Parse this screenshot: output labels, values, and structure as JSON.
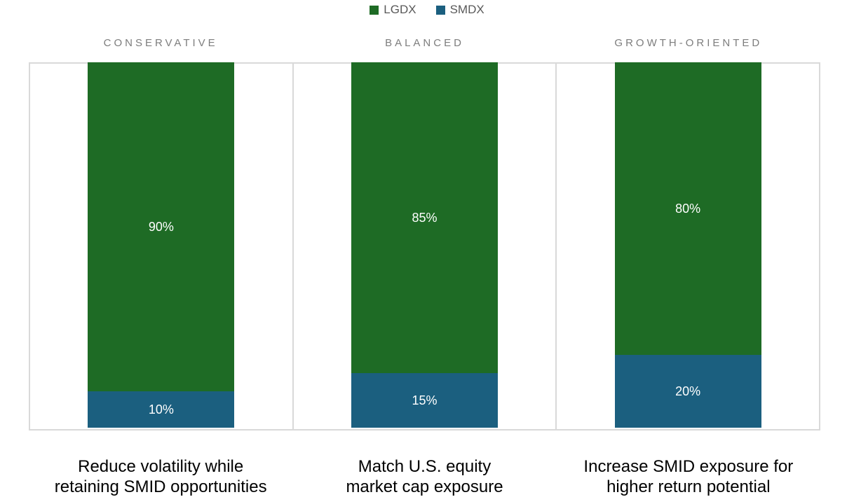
{
  "legend": {
    "items": [
      {
        "label": "LGDX",
        "color": "#1E6B25"
      },
      {
        "label": "SMDX",
        "color": "#1B5F7F"
      }
    ]
  },
  "chart_data": {
    "type": "bar",
    "stacked": true,
    "orientation": "vertical",
    "categories": [
      "CONSERVATIVE",
      "BALANCED",
      "GROWTH-ORIENTED"
    ],
    "series": [
      {
        "name": "LGDX",
        "color": "#1E6B25",
        "values": [
          90,
          85,
          80
        ]
      },
      {
        "name": "SMDX",
        "color": "#1B5F7F",
        "values": [
          10,
          15,
          20
        ]
      }
    ],
    "value_labels": [
      [
        "90%",
        "85%",
        "80%"
      ],
      [
        "10%",
        "15%",
        "20%"
      ]
    ],
    "unit": "%",
    "ylim": [
      0,
      100
    ],
    "grid": false,
    "legend_position": "top-center",
    "captions": [
      "Reduce volatility while retaining SMID opportunities",
      "Match U.S. equity market cap exposure",
      "Increase SMID exposure for higher return potential"
    ]
  },
  "panels": [
    {
      "header": "CONSERVATIVE",
      "lgdx_label": "90%",
      "smdx_label": "10%",
      "caption_line1": "Reduce volatility while",
      "caption_line2": "retaining SMID opportunities"
    },
    {
      "header": "BALANCED",
      "lgdx_label": "85%",
      "smdx_label": "15%",
      "caption_line1": "Match U.S. equity",
      "caption_line2": "market cap exposure"
    },
    {
      "header": "GROWTH-ORIENTED",
      "lgdx_label": "80%",
      "smdx_label": "20%",
      "caption_line1": "Increase SMID exposure for",
      "caption_line2": "higher return potential"
    }
  ],
  "colors": {
    "lgdx_green": "#1E6B25",
    "smdx_blue": "#1B5F7F",
    "panel_border": "#D9D9D9",
    "header_text": "#7D7D7D",
    "legend_text": "#595959",
    "bar_label_text": "#FFFFFF",
    "caption_text": "#000000",
    "background": "#FFFFFF"
  }
}
